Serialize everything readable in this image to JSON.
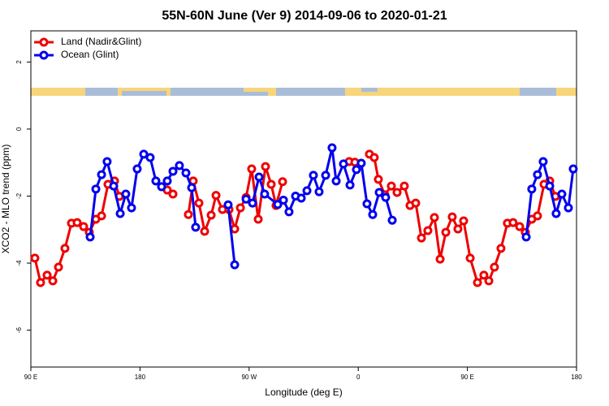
{
  "chart_data": {
    "type": "line",
    "title": "55N-60N June (Ver 9)   2014-09-06 to 2020-01-21",
    "x_label": "Longitude (deg E)",
    "y_label": "XCO2 - MLO trend (ppm)",
    "xlim": [
      90,
      540
    ],
    "xticks": [
      {
        "value": 90,
        "label": "90 E"
      },
      {
        "value": 180,
        "label": "180"
      },
      {
        "value": 270,
        "label": "90 W"
      },
      {
        "value": 360,
        "label": "0"
      },
      {
        "value": 450,
        "label": "90 E"
      },
      {
        "value": 540,
        "label": "180"
      }
    ],
    "ylim": [
      -7.1,
      2.93
    ],
    "yticks": [
      2,
      0,
      -2,
      -4,
      -6
    ],
    "legend": "top-left",
    "series": [
      {
        "name": "Land (Nadir&Glint)",
        "color": "#ee0000",
        "x": [
          93.3,
          98.0,
          103.4,
          108.1,
          112.8,
          118.1,
          123.5,
          128.2,
          133.5,
          138.2,
          143.6,
          148.3,
          153.6,
          159.0,
          163.0,
          null,
          202.5,
          207.2,
          null,
          219.9,
          223.9,
          228.6,
          233.3,
          238.7,
          242.7,
          248.0,
          253.4,
          258.1,
          262.8,
          267.5,
          272.1,
          277.5,
          283.5,
          288.2,
          292.2,
          297.6,
          null,
          352.5,
          357.2,
          null,
          369.2,
          373.2,
          376.6,
          381.9,
          387.3,
          392.0,
          398.0,
          402.7,
          407.4,
          412.1,
          417.4,
          422.8,
          427.5,
          432.2,
          437.5,
          442.2,
          446.9,
          452.3,
          458.3,
          463.6,
          467.7,
          472.3,
          477.7,
          483.0,
          487.7,
          493.1,
          497.8,
          503.1,
          507.8,
          513.2,
          517.9,
          522.6
        ],
        "values": [
          -3.85,
          -4.58,
          -4.36,
          -4.53,
          -4.12,
          -3.56,
          -2.81,
          -2.79,
          -2.91,
          -3.08,
          -2.69,
          -2.59,
          -1.65,
          -1.55,
          -2.01,
          null,
          -1.82,
          -1.94,
          null,
          -2.55,
          -1.55,
          -2.21,
          -3.05,
          -2.57,
          -1.98,
          -2.4,
          -2.4,
          -2.98,
          -2.35,
          -2.04,
          -1.19,
          -2.69,
          -1.12,
          -1.65,
          -2.28,
          -1.57,
          null,
          -0.97,
          -0.99,
          null,
          -0.75,
          -0.85,
          -1.5,
          -1.96,
          -1.7,
          -1.89,
          -1.7,
          -2.28,
          -2.21,
          -3.25,
          -3.03,
          -2.64,
          -3.88,
          -3.08,
          -2.62,
          -2.98,
          -2.74,
          -3.85,
          -4.58,
          -4.36,
          -4.53,
          -4.12,
          -3.56,
          -2.81,
          -2.79,
          -2.91,
          -3.08,
          -2.69,
          -2.59,
          -1.65,
          -1.55,
          -2.01
        ]
      },
      {
        "name": "Ocean (Glint)",
        "color": "#0000ee",
        "x": [
          138.9,
          143.6,
          148.3,
          152.9,
          158.3,
          163.7,
          168.3,
          173.0,
          177.7,
          183.1,
          188.4,
          193.1,
          197.8,
          202.5,
          207.2,
          212.5,
          217.9,
          222.6,
          225.9,
          null,
          252.7,
          258.1,
          null,
          267.5,
          272.8,
          278.2,
          282.8,
          293.6,
          298.3,
          302.9,
          308.3,
          313.0,
          317.7,
          323.0,
          327.7,
          333.1,
          338.4,
          341.8,
          347.8,
          353.2,
          358.5,
          362.5,
          367.2,
          371.9,
          377.3,
          382.6,
          388.0,
          null,
          498.5,
          503.1,
          507.8,
          512.5,
          517.9,
          523.2,
          527.9,
          533.3,
          537.3
        ],
        "values": [
          -3.22,
          -1.79,
          -1.36,
          -0.97,
          -1.7,
          -2.52,
          -1.94,
          -2.35,
          -1.19,
          -0.75,
          -0.85,
          -1.55,
          -1.72,
          -1.55,
          -1.26,
          -1.09,
          -1.31,
          -1.75,
          -2.93,
          null,
          -2.26,
          -4.05,
          null,
          -2.09,
          -2.21,
          -1.43,
          -1.94,
          -2.25,
          -2.12,
          -2.47,
          -2.0,
          -2.06,
          -1.84,
          -1.38,
          -1.87,
          -1.38,
          -0.56,
          -1.55,
          -1.04,
          -1.67,
          -1.21,
          -1.02,
          -2.23,
          -2.55,
          -1.89,
          -2.04,
          -2.72,
          null,
          -3.22,
          -1.79,
          -1.36,
          -0.97,
          -1.7,
          -2.52,
          -1.94,
          -2.35,
          -1.19
        ]
      }
    ]
  }
}
